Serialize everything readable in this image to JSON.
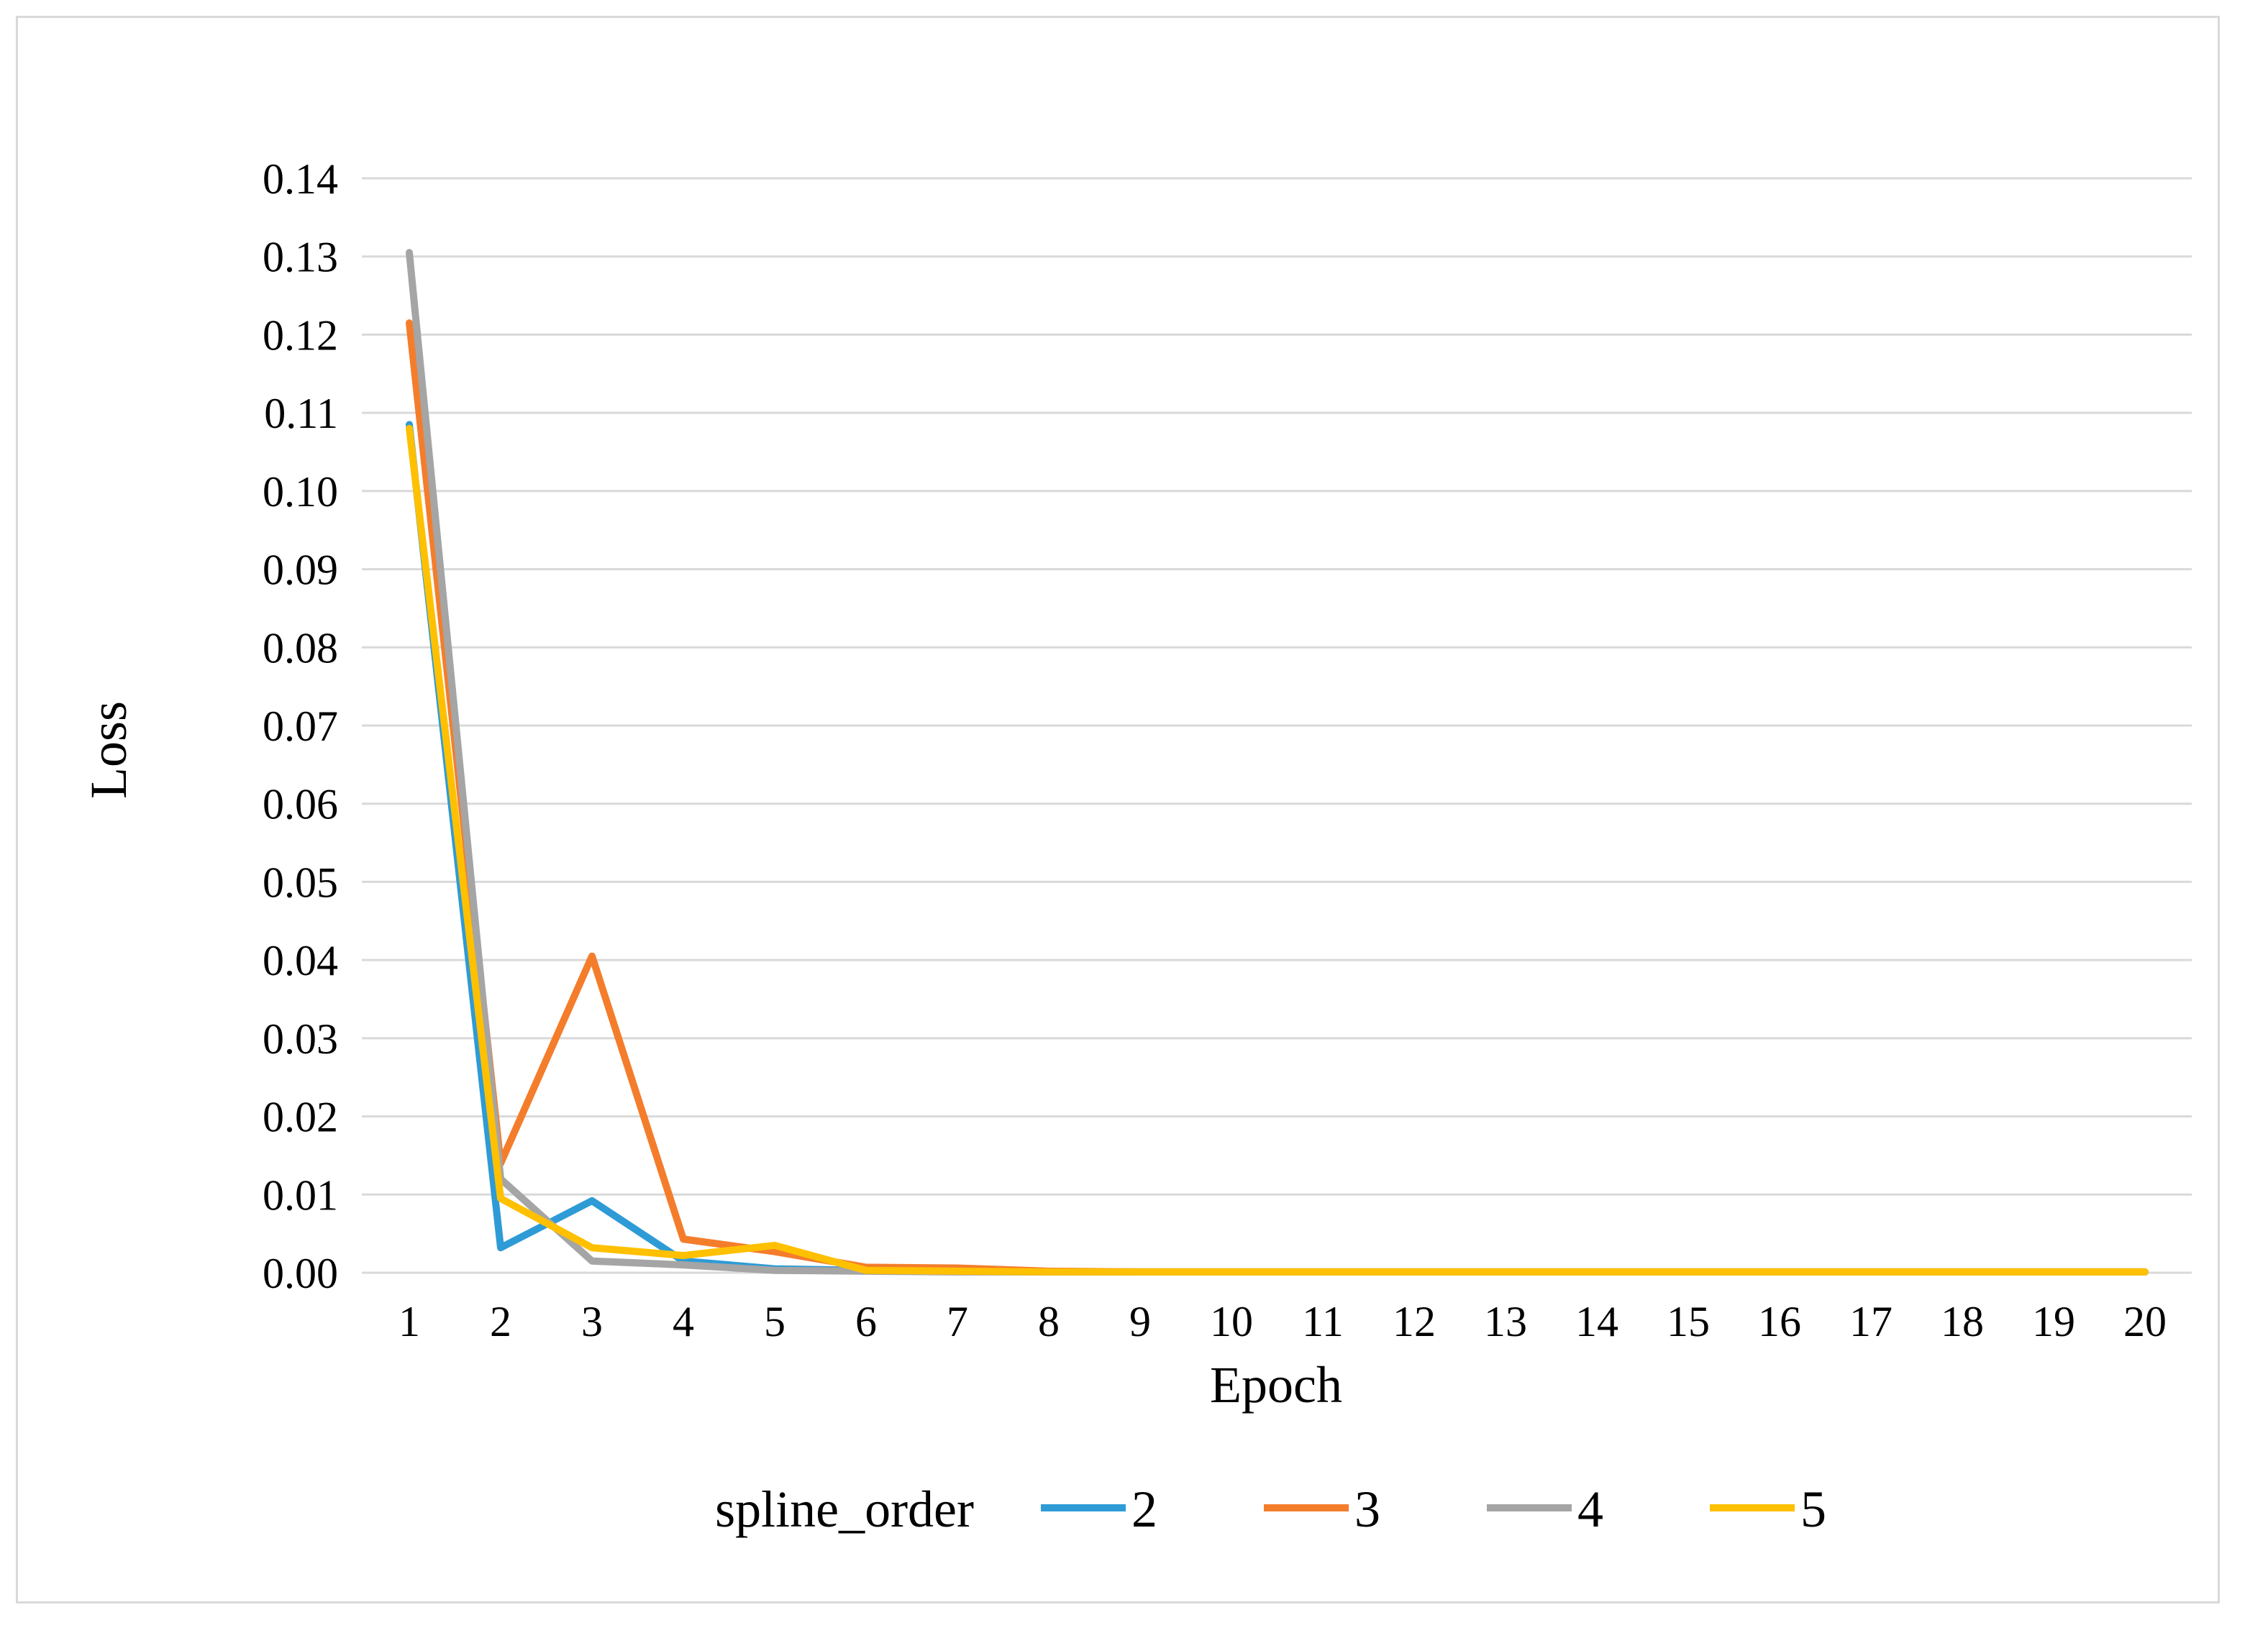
{
  "chart_data": {
    "type": "line",
    "title": "",
    "xlabel": "Epoch",
    "ylabel": "Loss",
    "x": [
      1,
      2,
      3,
      4,
      5,
      6,
      7,
      8,
      9,
      10,
      11,
      12,
      13,
      14,
      15,
      16,
      17,
      18,
      19,
      20
    ],
    "x_tick_labels": [
      "1",
      "2",
      "3",
      "4",
      "5",
      "6",
      "7",
      "8",
      "9",
      "10",
      "11",
      "12",
      "13",
      "14",
      "15",
      "16",
      "17",
      "18",
      "19",
      "20"
    ],
    "y_tick_labels": [
      "0.00",
      "0.01",
      "0.02",
      "0.03",
      "0.04",
      "0.05",
      "0.06",
      "0.07",
      "0.08",
      "0.09",
      "0.10",
      "0.11",
      "0.12",
      "0.13",
      "0.14"
    ],
    "ylim": [
      0,
      0.14
    ],
    "y_ticks": [
      0,
      0.01,
      0.02,
      0.03,
      0.04,
      0.05,
      0.06,
      0.07,
      0.08,
      0.09,
      0.1,
      0.11,
      0.12,
      0.13,
      0.14
    ],
    "grid": true,
    "legend_title": "spline_order",
    "legend_position": "bottom",
    "series": [
      {
        "name": "2",
        "color": "#2e9bd6",
        "values": [
          0.1085,
          0.0032,
          0.0092,
          0.0015,
          0.0005,
          0.0003,
          0.0002,
          0.0001,
          0.0001,
          0.0001,
          0.0001,
          0.0001,
          0.0001,
          0.0001,
          0.0001,
          0.0001,
          0.0001,
          0.0001,
          0.0001,
          0.0001
        ]
      },
      {
        "name": "3",
        "color": "#f47d2c",
        "values": [
          0.1215,
          0.014,
          0.0405,
          0.0043,
          0.0027,
          0.0007,
          0.0006,
          0.0002,
          0.0001,
          0.0001,
          0.0001,
          0.0001,
          0.0001,
          0.0001,
          0.0001,
          0.0001,
          0.0001,
          0.0001,
          0.0001,
          0.0001
        ]
      },
      {
        "name": "4",
        "color": "#a5a5a5",
        "values": [
          0.1305,
          0.012,
          0.0015,
          0.001,
          0.0003,
          0.0002,
          0.0001,
          0.0001,
          0.0001,
          0.0001,
          0.0001,
          0.0001,
          0.0001,
          0.0001,
          0.0001,
          0.0001,
          0.0001,
          0.0001,
          0.0001,
          0.0001
        ]
      },
      {
        "name": "5",
        "color": "#ffc000",
        "values": [
          0.108,
          0.0095,
          0.0032,
          0.0022,
          0.0035,
          0.0003,
          0.0002,
          0.0001,
          0.0001,
          0.0001,
          0.0001,
          0.0001,
          0.0001,
          0.0001,
          0.0001,
          0.0001,
          0.0001,
          0.0001,
          0.0001,
          0.0001
        ]
      }
    ]
  }
}
